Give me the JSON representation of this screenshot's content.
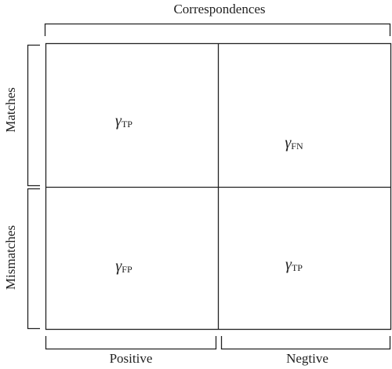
{
  "title": "Correspondences",
  "rows": [
    "Matches",
    "Mismatches"
  ],
  "columns": [
    "Positive",
    "Negtive"
  ],
  "cells": [
    {
      "symbol": "γ",
      "subscript": "TP"
    },
    {
      "symbol": "γ",
      "subscript": "FN"
    },
    {
      "symbol": "γ",
      "subscript": "FP"
    },
    {
      "symbol": "γ",
      "subscript": "TP"
    }
  ]
}
